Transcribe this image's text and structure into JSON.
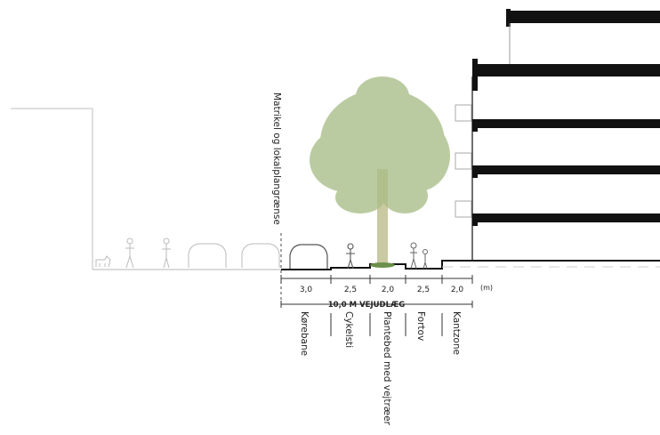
{
  "boundary_label": "Matrikel og lokalplangrænse",
  "total_label": "10,0 M VEJUDLÆG",
  "unit_label": "(m)",
  "segments": [
    {
      "width": "3,0",
      "name": "Kørebane"
    },
    {
      "width": "2,5",
      "name": "Cykelsti"
    },
    {
      "width": "2,0",
      "name": "Plantebed med vejtræer"
    },
    {
      "width": "2,5",
      "name": "Fortov"
    },
    {
      "width": "2,0",
      "name": "Kantzone"
    }
  ],
  "icons": [
    "dog-icon",
    "pedestrian-icon",
    "cyclist-icon",
    "car-icon",
    "tree-icon",
    "building-icon"
  ]
}
